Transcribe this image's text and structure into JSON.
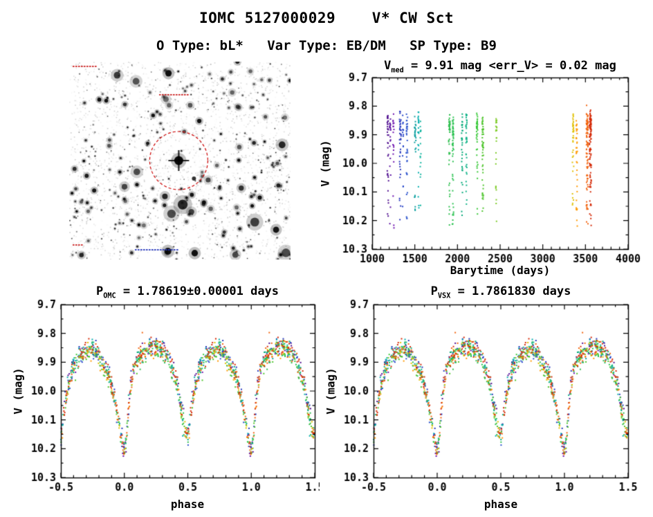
{
  "page": {
    "title": "IOMC 5127000029    V* CW Sct",
    "subtitle": "O Type: bL*   Var Type: EB/DM   SP Type: B9"
  },
  "finder_chart": {
    "description": "grayscale star field finder chart with target marked",
    "circle_color": "#cc0000",
    "annotation_color": "#cc2222",
    "annotation_color_bottom": "#2233bb",
    "seed": 20029,
    "n_stars": 400
  },
  "chart_data": [
    {
      "id": "lightcurve_vs_time",
      "type": "scatter",
      "title": {
        "main": "V",
        "sub": "med",
        "rest": " = 9.91 mag <err_V> = 0.02 mag"
      },
      "xlabel": "Barytime (days)",
      "ylabel": "V (mag)",
      "xlim": [
        1000,
        4000
      ],
      "xticks": [
        "1000",
        "1500",
        "2000",
        "2500",
        "3000",
        "3500",
        "4000"
      ],
      "xminor_step": 100,
      "ylim": [
        9.7,
        10.3
      ],
      "yticks": [
        "9.7",
        "9.8",
        "9.9",
        "10.0",
        "10.1",
        "10.2",
        "10.3"
      ],
      "yminor_step": 0.05,
      "marker": "square",
      "marker_size_px": 2,
      "y_axis_inverted_magnitudes": true
    },
    {
      "id": "phase_folded_omc_period",
      "type": "scatter",
      "title": {
        "main": "P",
        "sub": "OMC",
        "rest": " = 1.78619±0.00001 days"
      },
      "xlabel": "phase",
      "ylabel": "V (mag)",
      "xlim": [
        -0.5,
        1.5
      ],
      "xticks": [
        "-0.5",
        "0.0",
        "0.5",
        "1.0",
        "1.5"
      ],
      "xminor_step": 0.1,
      "ylim": [
        9.7,
        10.3
      ],
      "yticks": [
        "9.7",
        "9.8",
        "9.9",
        "10.0",
        "10.1",
        "10.2",
        "10.3"
      ],
      "yminor_step": 0.05,
      "fold_period_days": 1.78619,
      "marker": "square",
      "marker_size_px": 2
    },
    {
      "id": "phase_folded_vsx_period",
      "type": "scatter",
      "title": {
        "main": "P",
        "sub": "VSX",
        "rest": " = 1.7861830 days"
      },
      "xlabel": "phase",
      "ylabel": "V (mag)",
      "xlim": [
        -0.5,
        1.5
      ],
      "xticks": [
        "-0.5",
        "0.0",
        "0.5",
        "1.0",
        "1.5"
      ],
      "xminor_step": 0.1,
      "ylim": [
        9.7,
        10.3
      ],
      "yticks": [
        "9.7",
        "9.8",
        "9.9",
        "10.0",
        "10.1",
        "10.2",
        "10.3"
      ],
      "yminor_step": 0.05,
      "fold_period_days": 1.786183,
      "marker": "square",
      "marker_size_px": 2
    }
  ],
  "observations": {
    "period_days": 1.78619,
    "median_v_mag": 9.91,
    "mean_err_v_mag": 0.02,
    "noise_mag": 0.02,
    "light_curve_phase_mag": [
      [
        0.0,
        10.21
      ],
      [
        0.02,
        10.13
      ],
      [
        0.045,
        9.99
      ],
      [
        0.08,
        9.91
      ],
      [
        0.13,
        9.875
      ],
      [
        0.19,
        9.855
      ],
      [
        0.25,
        9.845
      ],
      [
        0.31,
        9.862
      ],
      [
        0.36,
        9.9
      ],
      [
        0.41,
        9.965
      ],
      [
        0.445,
        10.05
      ],
      [
        0.475,
        10.12
      ],
      [
        0.5,
        10.16
      ],
      [
        0.525,
        10.08
      ],
      [
        0.555,
        9.985
      ],
      [
        0.6,
        9.915
      ],
      [
        0.655,
        9.88
      ],
      [
        0.72,
        9.855
      ],
      [
        0.78,
        9.868
      ],
      [
        0.835,
        9.905
      ],
      [
        0.885,
        9.96
      ],
      [
        0.925,
        10.03
      ],
      [
        0.965,
        10.13
      ],
      [
        1.0,
        10.21
      ]
    ],
    "epochs": [
      {
        "t": 1185,
        "spread": 8,
        "n": 35,
        "color": "#4f0e8f",
        "dmag": -0.01
      },
      {
        "t": 1212,
        "spread": 6,
        "n": 20,
        "color": "#5a10a0",
        "dmag": 0.0
      },
      {
        "t": 1250,
        "spread": 6,
        "n": 18,
        "color": "#6a0dad",
        "dmag": 0.01
      },
      {
        "t": 1330,
        "spread": 9,
        "n": 38,
        "color": "#2233bb",
        "dmag": -0.02
      },
      {
        "t": 1362,
        "spread": 5,
        "n": 15,
        "color": "#1e40c8",
        "dmag": 0.0
      },
      {
        "t": 1408,
        "spread": 8,
        "n": 32,
        "color": "#2a52cc",
        "dmag": 0.01
      },
      {
        "t": 1505,
        "spread": 8,
        "n": 30,
        "color": "#0b9f9f",
        "dmag": 0.0
      },
      {
        "t": 1542,
        "spread": 6,
        "n": 22,
        "color": "#00adad",
        "dmag": -0.01
      },
      {
        "t": 1568,
        "spread": 5,
        "n": 16,
        "color": "#12b5a0",
        "dmag": 0.0
      },
      {
        "t": 1905,
        "spread": 8,
        "n": 45,
        "color": "#2fbf4f",
        "dmag": 0.0
      },
      {
        "t": 1947,
        "spread": 8,
        "n": 52,
        "color": "#27c14e",
        "dmag": 0.01
      },
      {
        "t": 2055,
        "spread": 7,
        "n": 32,
        "color": "#00a878",
        "dmag": 0.0
      },
      {
        "t": 2105,
        "spread": 7,
        "n": 36,
        "color": "#11b388",
        "dmag": -0.01
      },
      {
        "t": 2230,
        "spread": 8,
        "n": 42,
        "color": "#37c837",
        "dmag": 0.0
      },
      {
        "t": 2297,
        "spread": 8,
        "n": 52,
        "color": "#4cc42a",
        "dmag": 0.01
      },
      {
        "t": 2455,
        "spread": 6,
        "n": 26,
        "color": "#7ecb29",
        "dmag": 0.0
      },
      {
        "t": 3355,
        "spread": 8,
        "n": 38,
        "color": "#e0c000",
        "dmag": 0.0
      },
      {
        "t": 3398,
        "spread": 7,
        "n": 36,
        "color": "#ff9900",
        "dmag": 0.01
      },
      {
        "t": 3520,
        "spread": 10,
        "n": 85,
        "color": "#f26511",
        "dmag": 0.0
      },
      {
        "t": 3558,
        "spread": 11,
        "n": 100,
        "color": "#d42805",
        "dmag": -0.005
      }
    ]
  }
}
